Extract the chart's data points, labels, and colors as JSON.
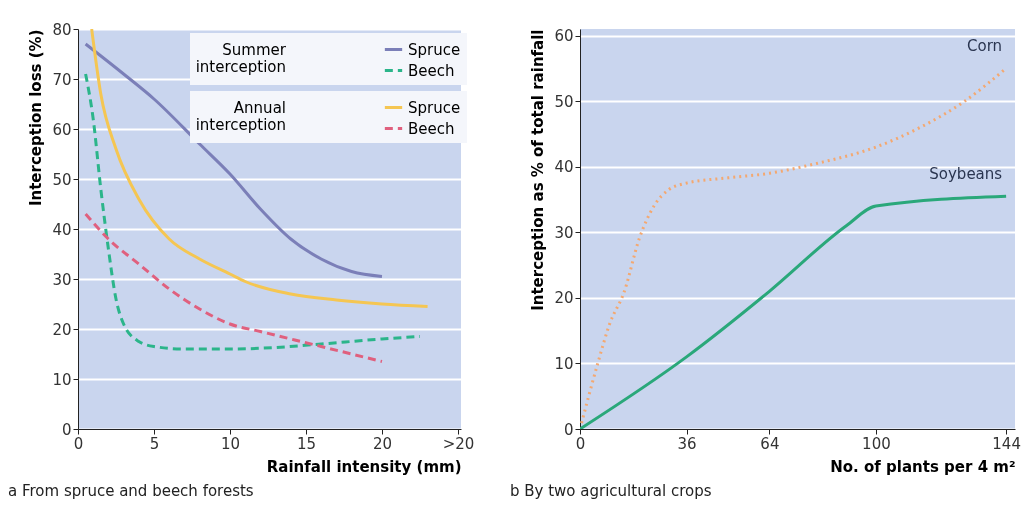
{
  "chart_data": [
    {
      "type": "line",
      "title": "a From spruce and beech forests",
      "xlabel": "Rainfall intensity (mm)",
      "ylabel": "Interception loss (%)",
      "annotations": [
        "Summer interception",
        "Annual interception"
      ],
      "xlim": [
        0,
        25.2
      ],
      "xticks": [
        0,
        5,
        10,
        15,
        20,
        {
          "value": 25,
          "label": ">20"
        }
      ],
      "ylim": [
        0,
        80
      ],
      "yticks": [
        0,
        10,
        20,
        30,
        40,
        50,
        60,
        70,
        80
      ],
      "grid": "y",
      "legend": "top right",
      "series": [
        {
          "name": "Spruce",
          "color": "#7b7fb8",
          "line_style": "solid",
          "x": [
            0.5,
            3,
            5,
            8,
            10,
            12,
            14,
            16,
            18,
            20
          ],
          "values": [
            77,
            71,
            66,
            57,
            51,
            44,
            38,
            34,
            31.5,
            30.5
          ]
        },
        {
          "name": "Beech",
          "color": "#2bb58a",
          "line_style": "dashed",
          "x": [
            0.5,
            1,
            1.5,
            2,
            2.5,
            3,
            4,
            5,
            7,
            10,
            13,
            16,
            20,
            22.5
          ],
          "values": [
            71,
            62,
            48,
            36,
            26,
            21,
            17.5,
            16.5,
            16,
            16,
            16.3,
            17,
            18,
            18.5
          ]
        },
        {
          "name": "Spruce",
          "color": "#f5c652",
          "line_style": "solid",
          "x": [
            0.9,
            1.5,
            2.5,
            4,
            6,
            8,
            10,
            11,
            14,
            17,
            20,
            23
          ],
          "values": [
            80,
            67,
            56,
            46,
            38,
            34,
            31,
            29.5,
            27,
            25.8,
            25,
            24.5
          ]
        },
        {
          "name": "Beech",
          "color": "#e0607e",
          "line_style": "dashed",
          "x": [
            0.5,
            2,
            4,
            6,
            8,
            10,
            12,
            14,
            16,
            18,
            20
          ],
          "values": [
            43,
            38,
            33,
            28,
            24,
            21,
            19.5,
            18,
            16.5,
            15,
            13.5
          ]
        }
      ]
    },
    {
      "type": "line",
      "title": "b By two agricultural crops",
      "xlabel": "No. of plants per 4 m²",
      "ylabel": "Interception as % of total rainfall",
      "xlim": [
        0,
        147
      ],
      "xticks": [
        0,
        36,
        64,
        100,
        144
      ],
      "ylim": [
        0,
        61
      ],
      "yticks": [
        0,
        10,
        20,
        30,
        40,
        50,
        60
      ],
      "grid": "y",
      "series": [
        {
          "name": "Corn",
          "color": "#f4a870",
          "line_style": "dotted",
          "x": [
            0,
            6,
            10,
            15,
            20,
            25,
            30,
            36,
            50,
            64,
            80,
            100,
            115,
            130,
            144
          ],
          "values": [
            0,
            10,
            16,
            21,
            29,
            34,
            36.5,
            37.5,
            38.3,
            39,
            40.5,
            43,
            46,
            50,
            55
          ]
        },
        {
          "name": "Soybeans",
          "color": "#2aa87a",
          "line_style": "solid",
          "x": [
            0,
            36,
            64,
            90,
            100,
            144
          ],
          "values": [
            0,
            11,
            21,
            31,
            34,
            35.5
          ]
        }
      ]
    }
  ]
}
